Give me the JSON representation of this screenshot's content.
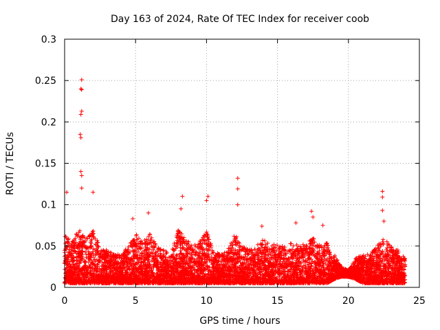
{
  "chart_data": {
    "type": "scatter",
    "title": "Day 163 of 2024, Rate Of TEC Index for receiver coob",
    "xlabel": "GPS time / hours",
    "ylabel": "ROTI / TECUs",
    "xlim": [
      0,
      25
    ],
    "ylim": [
      0,
      0.3
    ],
    "x_ticks": [
      0,
      5,
      10,
      15,
      20,
      25
    ],
    "y_ticks": [
      0,
      0.05,
      0.1,
      0.15,
      0.2,
      0.25,
      0.3
    ],
    "x_tick_labels": [
      "0",
      "5",
      "10",
      "15",
      "20",
      "25"
    ],
    "y_tick_labels": [
      "0",
      "0.05",
      "0.1",
      "0.15",
      "0.2",
      "0.25",
      "0.3"
    ],
    "grid": true,
    "marker": "+",
    "marker_color": "#ff0000",
    "data_range_hours": [
      0,
      24
    ],
    "notable_points": [
      {
        "x": 1.2,
        "y": 0.251
      },
      {
        "x": 1.15,
        "y": 0.24
      },
      {
        "x": 1.2,
        "y": 0.239
      },
      {
        "x": 1.2,
        "y": 0.213
      },
      {
        "x": 1.15,
        "y": 0.209
      },
      {
        "x": 1.1,
        "y": 0.185
      },
      {
        "x": 1.15,
        "y": 0.181
      },
      {
        "x": 1.15,
        "y": 0.14
      },
      {
        "x": 1.2,
        "y": 0.135
      },
      {
        "x": 1.2,
        "y": 0.12
      },
      {
        "x": 0.15,
        "y": 0.115
      },
      {
        "x": 2.0,
        "y": 0.115
      },
      {
        "x": 12.2,
        "y": 0.132
      },
      {
        "x": 12.2,
        "y": 0.119
      },
      {
        "x": 12.2,
        "y": 0.1
      },
      {
        "x": 10.1,
        "y": 0.11
      },
      {
        "x": 10.0,
        "y": 0.105
      },
      {
        "x": 8.3,
        "y": 0.11
      },
      {
        "x": 8.2,
        "y": 0.095
      },
      {
        "x": 22.4,
        "y": 0.116
      },
      {
        "x": 22.4,
        "y": 0.109
      },
      {
        "x": 22.4,
        "y": 0.093
      },
      {
        "x": 22.5,
        "y": 0.08
      },
      {
        "x": 17.4,
        "y": 0.092
      },
      {
        "x": 17.5,
        "y": 0.085
      },
      {
        "x": 13.9,
        "y": 0.074
      },
      {
        "x": 16.3,
        "y": 0.078
      },
      {
        "x": 18.2,
        "y": 0.075
      },
      {
        "x": 5.9,
        "y": 0.09
      },
      {
        "x": 4.8,
        "y": 0.083
      }
    ],
    "envelope": {
      "hours": [
        0,
        0.5,
        1,
        1.5,
        2,
        2.5,
        3,
        3.5,
        4,
        4.5,
        5,
        5.5,
        6,
        6.5,
        7,
        7.5,
        8,
        8.5,
        9,
        9.5,
        10,
        10.5,
        11,
        11.5,
        12,
        12.5,
        13,
        13.5,
        14,
        14.5,
        15,
        15.5,
        16,
        16.5,
        17,
        17.5,
        18,
        18.5,
        19,
        19.5,
        20,
        20.5,
        21,
        21.5,
        22,
        22.5,
        23,
        23.5,
        24
      ],
      "typical_max": [
        0.065,
        0.055,
        0.07,
        0.06,
        0.07,
        0.05,
        0.045,
        0.04,
        0.04,
        0.05,
        0.065,
        0.055,
        0.065,
        0.05,
        0.045,
        0.04,
        0.07,
        0.06,
        0.05,
        0.055,
        0.07,
        0.045,
        0.04,
        0.045,
        0.065,
        0.05,
        0.045,
        0.05,
        0.06,
        0.05,
        0.055,
        0.05,
        0.055,
        0.05,
        0.055,
        0.06,
        0.05,
        0.055,
        0.04,
        0.025,
        0.02,
        0.035,
        0.04,
        0.04,
        0.05,
        0.06,
        0.05,
        0.045,
        0.035
      ],
      "typical_min": [
        0.005,
        0.005,
        0.005,
        0.005,
        0.005,
        0.005,
        0.005,
        0.005,
        0.005,
        0.005,
        0.005,
        0.005,
        0.005,
        0.005,
        0.005,
        0.005,
        0.005,
        0.005,
        0.005,
        0.005,
        0.005,
        0.005,
        0.005,
        0.005,
        0.005,
        0.005,
        0.005,
        0.005,
        0.005,
        0.005,
        0.005,
        0.005,
        0.005,
        0.005,
        0.005,
        0.005,
        0.005,
        0.005,
        0.01,
        0.013,
        0.013,
        0.01,
        0.005,
        0.005,
        0.005,
        0.005,
        0.005,
        0.005,
        0.005
      ]
    }
  }
}
